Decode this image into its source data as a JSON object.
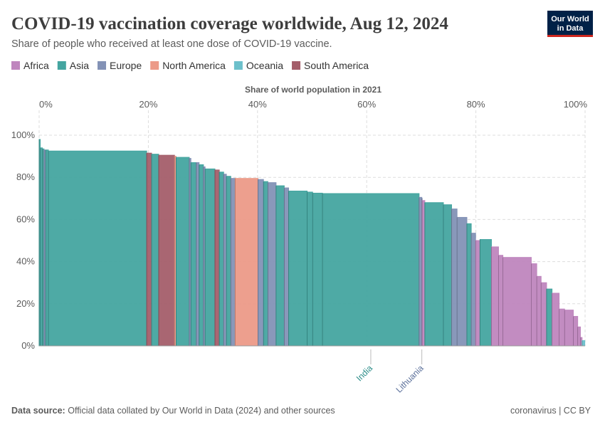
{
  "chart_data": {
    "type": "variable-width-bar",
    "title": "COVID-19 vaccination coverage worldwide, Aug 12, 2024",
    "subtitle": "Share of people who received at least one dose of COVID-19 vaccine.",
    "x_label": "Share of world population in 2021",
    "series": [
      {
        "name": "Africa",
        "color": "#bf86be"
      },
      {
        "name": "Asia",
        "color": "#44a5a0"
      },
      {
        "name": "Europe",
        "color": "#8392b6"
      },
      {
        "name": "North America",
        "color": "#ec9a88"
      },
      {
        "name": "Oceania",
        "color": "#6cc0cb"
      },
      {
        "name": "South America",
        "color": "#a45e6a"
      }
    ],
    "bars": {
      "continents": [
        "Asia",
        "Asia",
        "Asia",
        "Europe",
        "Asia",
        "Asia",
        "South America",
        "Asia",
        "South America",
        "North America",
        "Asia",
        "Europe",
        "Asia",
        "Europe",
        "Asia",
        "Europe",
        "Asia",
        "South America",
        "Asia",
        "Europe",
        "Asia",
        "Europe",
        "North America",
        "Europe",
        "Asia",
        "Europe",
        "Asia",
        "Europe",
        "Asia",
        "Asia",
        "Asia",
        "Asia",
        "Europe",
        "Europe",
        "Africa",
        "Asia",
        "Asia",
        "Europe",
        "Europe",
        "Asia",
        "Europe",
        "Africa",
        "Asia",
        "Africa",
        "Africa",
        "Africa",
        "Africa",
        "Africa",
        "Africa",
        "Asia",
        "Africa",
        "Africa",
        "Africa",
        "Africa",
        "Africa",
        "Africa",
        "Oceania"
      ],
      "widths": [
        0.2,
        0.4,
        0.3,
        0.3,
        0.5,
        18,
        0.9,
        1.3,
        2.9,
        0.3,
        2.4,
        0.3,
        1.0,
        0.5,
        0.8,
        0.3,
        1.8,
        0.8,
        0.8,
        0.5,
        0.8,
        0.8,
        4.2,
        1.0,
        0.8,
        1.5,
        1.5,
        0.8,
        3.4,
        1.0,
        1.8,
        17.7,
        0.5,
        0.05,
        0.5,
        3.4,
        1.5,
        1.0,
        1.8,
        0.8,
        0.8,
        0.8,
        2.1,
        1.3,
        0.8,
        5.2,
        1.0,
        0.8,
        1.0,
        1.0,
        1.3,
        1.0,
        1.6,
        0.8,
        0.5,
        0.3,
        0.5
      ],
      "values": [
        98,
        94,
        93.5,
        93,
        93,
        92.5,
        91.5,
        91,
        90.5,
        90,
        89.5,
        89,
        87,
        87,
        86,
        85,
        84,
        83.5,
        82.5,
        81.5,
        80.5,
        79.5,
        79.5,
        79,
        78,
        77.5,
        76,
        75,
        73.5,
        73,
        72.5,
        72.3,
        70.5,
        70,
        69,
        68,
        67,
        65,
        61,
        58,
        53.5,
        50,
        50.5,
        47,
        43,
        42,
        39,
        33,
        30,
        27,
        25,
        17.5,
        17,
        14,
        9,
        4,
        2.5
      ]
    },
    "annotations": [
      {
        "text": "India",
        "x": 60.75,
        "color": "#2a8c88"
      },
      {
        "text": "Lithuania",
        "x": 70.1,
        "color": "#5a6f9a"
      }
    ],
    "xlim": [
      0,
      100
    ],
    "xticks": [
      {
        "value": 0,
        "label": "0%"
      },
      {
        "value": 20,
        "label": "20%"
      },
      {
        "value": 40,
        "label": "40%"
      },
      {
        "value": 60,
        "label": "60%"
      },
      {
        "value": 80,
        "label": "80%"
      },
      {
        "value": 100,
        "label": "100%"
      }
    ],
    "ylim": [
      0,
      100
    ],
    "yticks": [
      {
        "value": 0,
        "label": "0%"
      },
      {
        "value": 20,
        "label": "20%"
      },
      {
        "value": 40,
        "label": "40%"
      },
      {
        "value": 60,
        "label": "60%"
      },
      {
        "value": 80,
        "label": "80%"
      },
      {
        "value": 100,
        "label": "100%"
      }
    ],
    "grid": true
  },
  "logo": [
    "Our World",
    "in Data"
  ],
  "footer": {
    "source_label": "Data source:",
    "source": "Official data collated by Our World in Data (2024) and other sources",
    "right": "coronavirus | CC BY"
  }
}
